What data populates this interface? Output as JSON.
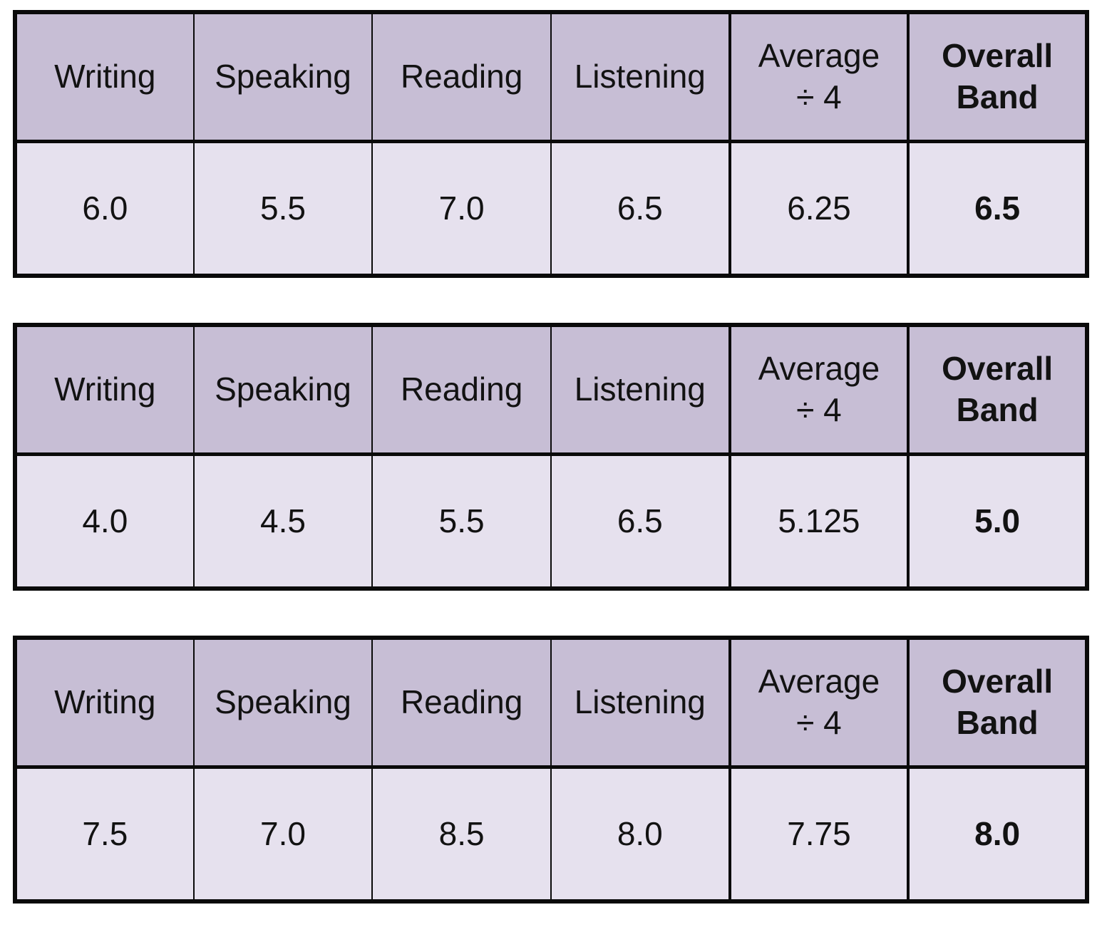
{
  "colors": {
    "header_bg": "#c7bed5",
    "body_bg": "#e6e1ee",
    "border": "#0a0a0a",
    "text": "#121212",
    "page_bg": "#ffffff"
  },
  "chart_data": [
    {
      "type": "table",
      "title": "",
      "columns": [
        "Writing",
        "Speaking",
        "Reading",
        "Listening",
        "Average\n÷ 4",
        "Overall\nBand"
      ],
      "rows": [
        [
          "6.0",
          "5.5",
          "7.0",
          "6.5",
          "6.25",
          "6.5"
        ]
      ]
    },
    {
      "type": "table",
      "title": "",
      "columns": [
        "Writing",
        "Speaking",
        "Reading",
        "Listening",
        "Average\n÷ 4",
        "Overall\nBand"
      ],
      "rows": [
        [
          "4.0",
          "4.5",
          "5.5",
          "6.5",
          "5.125",
          "5.0"
        ]
      ]
    },
    {
      "type": "table",
      "title": "",
      "columns": [
        "Writing",
        "Speaking",
        "Reading",
        "Listening",
        "Average\n÷ 4",
        "Overall\nBand"
      ],
      "rows": [
        [
          "7.5",
          "7.0",
          "8.5",
          "8.0",
          "7.75",
          "8.0"
        ]
      ]
    }
  ]
}
